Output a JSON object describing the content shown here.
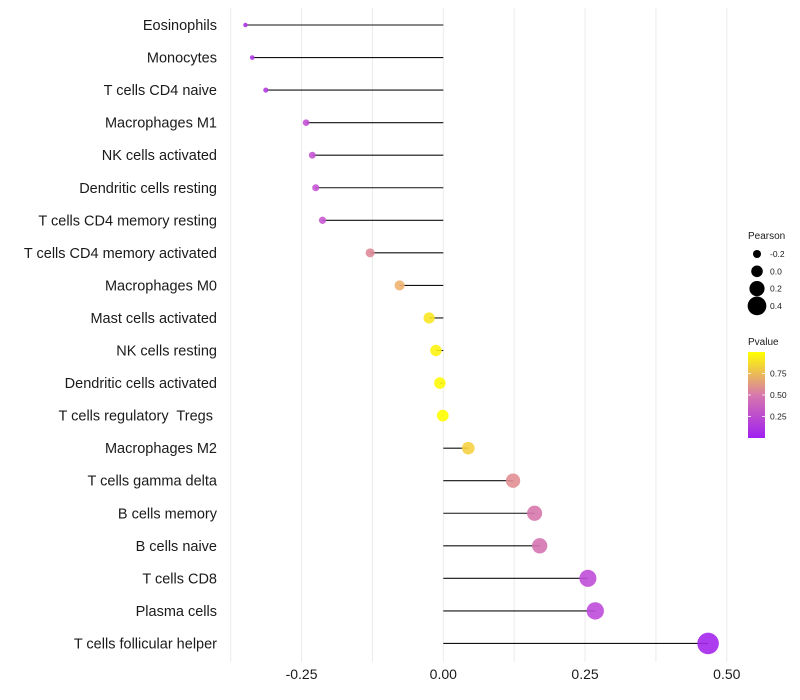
{
  "chart_data": {
    "type": "lollipop",
    "title": "",
    "xlabel": "",
    "ylabel": "",
    "xlim": [
      -0.375,
      0.5
    ],
    "x_ticks": [
      -0.25,
      0.0,
      0.25,
      0.5
    ],
    "x_tick_labels": [
      "-0.25",
      "0.00",
      "0.25",
      "0.50"
    ],
    "grid": true,
    "categories": [
      "Eosinophils",
      "Monocytes",
      "T cells CD4 naive",
      "Macrophages M1",
      "NK cells activated",
      "Dendritic cells resting",
      "T cells CD4 memory resting",
      "T cells CD4 memory activated",
      "Macrophages M0",
      "Mast cells activated",
      "NK cells resting",
      "Dendritic cells activated",
      "T cells regulatory  Tregs ",
      "Macrophages M2",
      "T cells gamma delta",
      "B cells memory",
      "B cells naive",
      "T cells CD8",
      "Plasma cells",
      "T cells follicular helper"
    ],
    "values": [
      -0.349,
      -0.337,
      -0.313,
      -0.242,
      -0.231,
      -0.225,
      -0.213,
      -0.129,
      -0.077,
      -0.025,
      -0.013,
      -0.006,
      -0.001,
      0.044,
      0.123,
      0.161,
      0.17,
      0.255,
      0.268,
      0.467
    ],
    "pvalues": [
      0.13,
      0.15,
      0.18,
      0.3,
      0.32,
      0.33,
      0.35,
      0.58,
      0.74,
      0.92,
      0.96,
      0.98,
      1.0,
      0.85,
      0.6,
      0.5,
      0.48,
      0.28,
      0.26,
      0.04
    ],
    "legend": {
      "size": {
        "title": "Pearson",
        "entries": [
          {
            "label": "-0.2",
            "value": -0.2
          },
          {
            "label": "0.0",
            "value": 0.0
          },
          {
            "label": "0.2",
            "value": 0.2
          },
          {
            "label": "0.4",
            "value": 0.4
          }
        ]
      },
      "color": {
        "title": "Pvalue",
        "range": [
          0.0,
          1.0
        ],
        "ticks": [
          0.25,
          0.5,
          0.75
        ],
        "tick_labels": [
          "0.25",
          "0.50",
          "0.75"
        ],
        "low_color": "#a020f0",
        "high_color": "#ffff00"
      },
      "placement": "right"
    }
  }
}
